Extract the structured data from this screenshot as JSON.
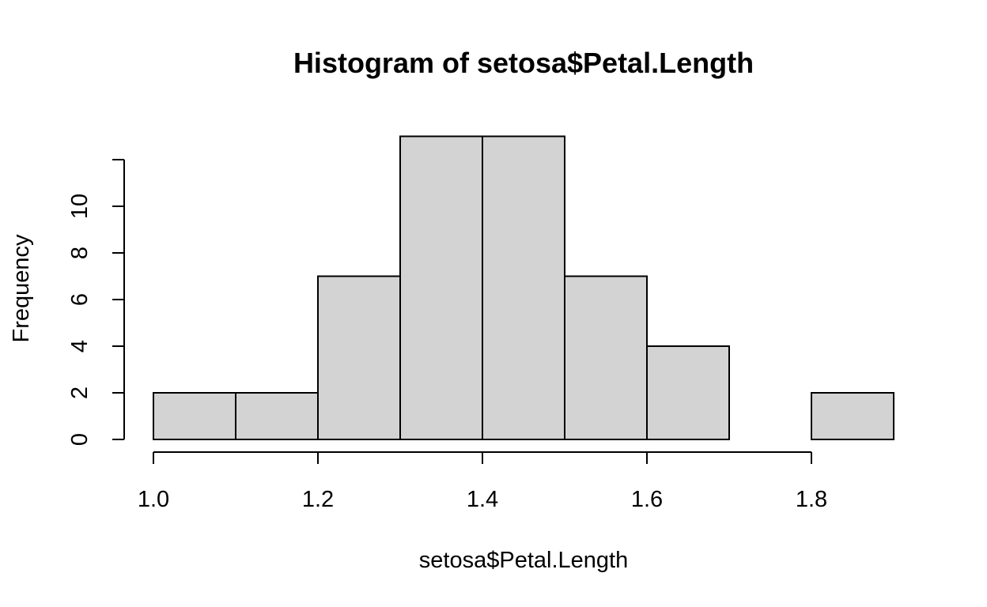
{
  "chart_data": {
    "type": "bar",
    "title": "Histogram of setosa$Petal.Length",
    "xlabel": "setosa$Petal.Length",
    "ylabel": "Frequency",
    "bins": [
      {
        "from": 1.0,
        "to": 1.1,
        "count": 2
      },
      {
        "from": 1.1,
        "to": 1.2,
        "count": 2
      },
      {
        "from": 1.2,
        "to": 1.3,
        "count": 7
      },
      {
        "from": 1.3,
        "to": 1.4,
        "count": 13
      },
      {
        "from": 1.4,
        "to": 1.5,
        "count": 13
      },
      {
        "from": 1.5,
        "to": 1.6,
        "count": 7
      },
      {
        "from": 1.6,
        "to": 1.7,
        "count": 4
      },
      {
        "from": 1.7,
        "to": 1.8,
        "count": 0
      },
      {
        "from": 1.8,
        "to": 1.9,
        "count": 2
      }
    ],
    "x_ticks": [
      "1.0",
      "1.2",
      "1.4",
      "1.6",
      "1.8"
    ],
    "y_ticks": [
      "0",
      "2",
      "4",
      "6",
      "8",
      "10"
    ],
    "xlim": [
      1.0,
      1.9
    ],
    "ylim": [
      0,
      13
    ],
    "bar_color": "#d3d3d3",
    "grid": false
  }
}
